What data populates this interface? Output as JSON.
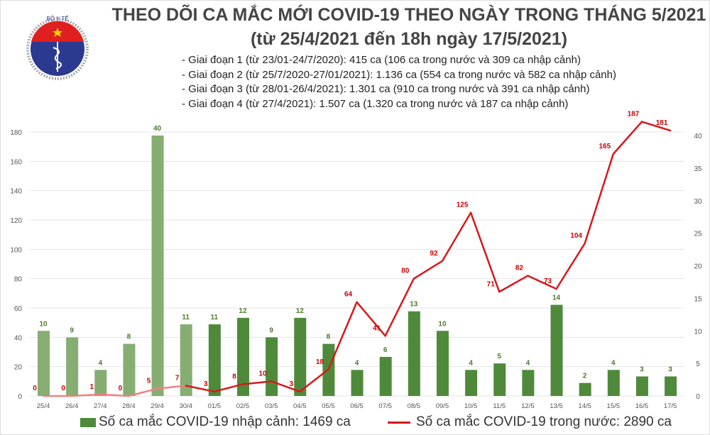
{
  "header": {
    "title": "THEO DÕI CA MẮC MỚI COVID-19 THEO NGÀY TRONG THÁNG 5/2021",
    "subtitle": "(từ 25/4/2021 đến 18h ngày 17/5/2021)",
    "logo_text": "BỘ Y TẾ MINISTRY OF HEALTH"
  },
  "notes": [
    "- Giai đoạn 1 (từ 23/01-24/7/2020): 415 ca (106 ca trong nước và 309 ca nhập cảnh)",
    "- Giai đoạn 2 (từ 25/7/2020-27/01/2021): 1.136 ca (554 ca trong nước và 582 ca nhập cảnh)",
    "- Giai đoạn 3 (từ 28/01-26/4/2021): 1.301 ca (910 ca trong nước và 391 ca nhập cảnh)",
    "- Giai đoạn 4 (từ 27/4/2021): 1.507 ca (1.320 ca trong nước và 187 ca nhập cảnh)"
  ],
  "chart_data": {
    "type": "bar+line",
    "categories": [
      "25/4",
      "26/4",
      "27/4",
      "28/4",
      "29/4",
      "30/4",
      "01/5",
      "02/5",
      "03/5",
      "04/5",
      "05/5",
      "06/5",
      "07/5",
      "08/5",
      "09/5",
      "10/5",
      "11/5",
      "12/5",
      "13/5",
      "14/5",
      "15/5",
      "16/5",
      "17/5"
    ],
    "series": [
      {
        "name": "Số ca mắc COVID-19 nhập cảnh: 1469 ca",
        "type": "bar",
        "axis": "right",
        "color": "#4e8a3a",
        "color_april": "#86ad72",
        "values": [
          10,
          9,
          4,
          8,
          40,
          11,
          11,
          12,
          9,
          12,
          8,
          4,
          6,
          13,
          10,
          4,
          5,
          4,
          14,
          2,
          4,
          3,
          3
        ]
      },
      {
        "name": "Số ca mắc COVID-19 trong nước: 2890 ca",
        "type": "line",
        "axis": "left",
        "color": "#d7191c",
        "color_april": "#ef8080",
        "values": [
          0,
          0,
          1,
          0,
          5,
          7,
          3,
          8,
          10,
          3,
          18,
          64,
          41,
          80,
          92,
          125,
          71,
          82,
          73,
          104,
          165,
          187,
          181
        ]
      }
    ],
    "left_axis": {
      "ylim": [
        0,
        180
      ],
      "ticks": [
        0,
        20,
        40,
        60,
        80,
        100,
        120,
        140,
        160,
        180
      ]
    },
    "right_axis": {
      "ylim": [
        0,
        40
      ],
      "ticks": [
        0,
        5,
        10,
        15,
        20,
        25,
        30,
        35,
        40
      ]
    },
    "grid": true,
    "legend": "bottom"
  }
}
